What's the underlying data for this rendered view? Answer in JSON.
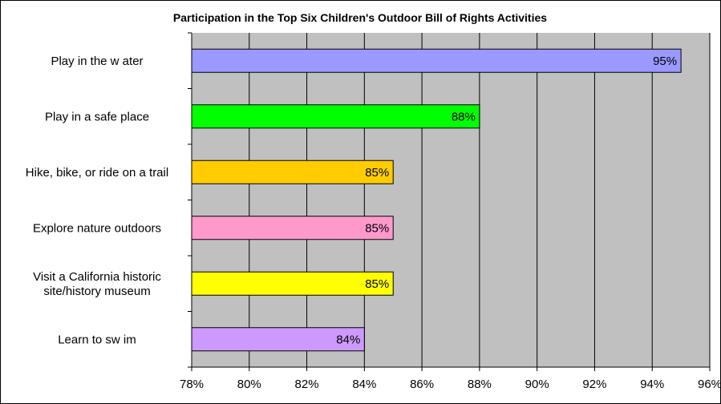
{
  "chart_data": {
    "type": "bar",
    "orientation": "horizontal",
    "title": "Participation in the Top Six Children's Outdoor Bill of Rights Activities",
    "categories": [
      [
        "Play in the w ater"
      ],
      [
        "Play in a safe place"
      ],
      [
        "Hike, bike, or ride on a trail"
      ],
      [
        "Explore nature outdoors"
      ],
      [
        "Visit a California historic",
        "site/history museum"
      ],
      [
        "Learn to sw im"
      ]
    ],
    "values": [
      95,
      88,
      85,
      85,
      85,
      84
    ],
    "data_labels": [
      "95%",
      "88%",
      "85%",
      "85%",
      "85%",
      "84%"
    ],
    "colors": [
      "#9999ff",
      "#00ff00",
      "#ffcc00",
      "#ff99cc",
      "#ffff00",
      "#cc99ff"
    ],
    "xlim": [
      78,
      96
    ],
    "xticks": [
      78,
      80,
      82,
      84,
      86,
      88,
      90,
      92,
      94,
      96
    ],
    "xtick_labels": [
      "78%",
      "80%",
      "82%",
      "84%",
      "86%",
      "88%",
      "90%",
      "92%",
      "94%",
      "96%"
    ],
    "xlabel": "",
    "ylabel": "",
    "grid": true,
    "plot_background": "#c0c0c0"
  }
}
